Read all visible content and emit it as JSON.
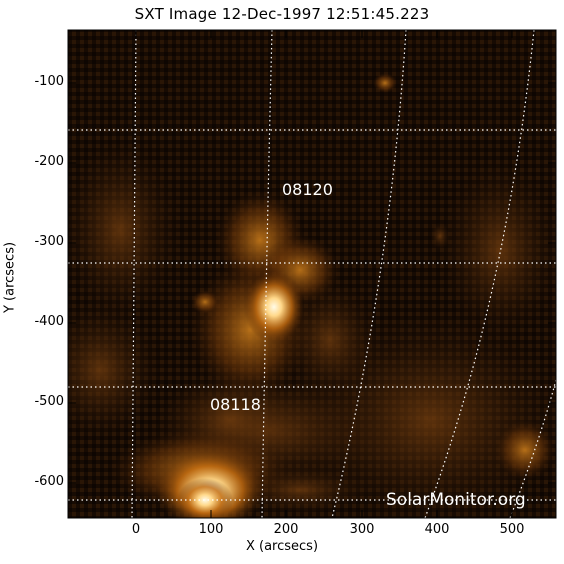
{
  "title": "SXT Image 12-Dec-1997 12:51:45.223",
  "x_axis": {
    "label": "X (arcsecs)",
    "ticks": [
      "0",
      "100",
      "200",
      "300",
      "400",
      "500"
    ]
  },
  "y_axis": {
    "label": "Y (arcsecs)",
    "ticks": [
      "-100",
      "-200",
      "-300",
      "-400",
      "-500",
      "-600"
    ]
  },
  "regions": [
    {
      "label": "08120"
    },
    {
      "label": "08118"
    }
  ],
  "watermark": "SolarMonitor.org",
  "colors": {
    "background": "#ffffff",
    "image_dark": "#140a02",
    "image_glow": "#e08a1c",
    "image_core": "#fff4d8",
    "grid": "#ffffff"
  }
}
